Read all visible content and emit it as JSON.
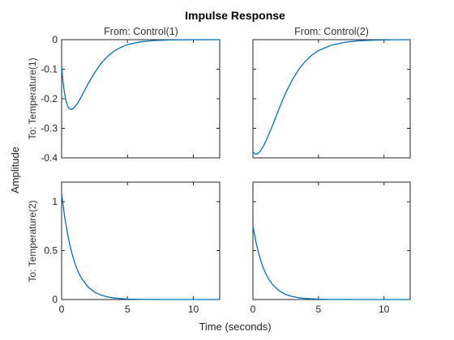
{
  "chart_data": {
    "type": "line",
    "title": "Impulse Response",
    "xlabel": "Time (seconds)",
    "ylabel": "Amplitude",
    "column_labels": [
      "From: Control(1)",
      "From: Control(2)"
    ],
    "row_labels": [
      "To: Temperature(1)",
      "To: Temperature(2)"
    ],
    "xlim": [
      0,
      12
    ],
    "xticks": [
      0,
      5,
      10
    ],
    "xtick_labels": [
      "0",
      "5",
      "10"
    ],
    "rows": [
      {
        "ylim": [
          -0.4,
          0
        ],
        "yticks": [
          0,
          -0.1,
          -0.2,
          -0.3,
          -0.4
        ],
        "ytick_labels": [
          "0",
          "-0.1",
          "-0.2",
          "-0.3",
          "-0.4"
        ]
      },
      {
        "ylim": [
          0,
          1.2
        ],
        "yticks": [
          1,
          0.5,
          0
        ],
        "ytick_labels": [
          "1",
          "0.5",
          "0"
        ]
      }
    ],
    "line_color": "#0072BD",
    "series": [
      {
        "row": 0,
        "col": 0,
        "x": [
          0,
          0.1,
          0.2,
          0.3,
          0.4,
          0.5,
          0.6,
          0.7,
          0.8,
          0.9,
          1.0,
          1.2,
          1.5,
          1.8,
          2.0,
          2.5,
          3.0,
          3.5,
          4.0,
          4.5,
          5.0,
          6.0,
          7.0,
          8.0,
          9.0,
          10.0,
          11.0,
          12.0
        ],
        "y": [
          -0.09,
          -0.14,
          -0.175,
          -0.2,
          -0.217,
          -0.228,
          -0.234,
          -0.236,
          -0.235,
          -0.232,
          -0.228,
          -0.216,
          -0.193,
          -0.167,
          -0.15,
          -0.112,
          -0.08,
          -0.056,
          -0.038,
          -0.026,
          -0.017,
          -0.007,
          -0.003,
          -0.0012,
          -0.0005,
          -0.0002,
          -0.0001,
          0
        ]
      },
      {
        "row": 0,
        "col": 1,
        "x": [
          0,
          0.2,
          0.4,
          0.6,
          0.8,
          1.0,
          1.5,
          2.0,
          2.5,
          3.0,
          3.5,
          4.0,
          4.5,
          5.0,
          6.0,
          7.0,
          8.0,
          9.0,
          10.0,
          11.0,
          12.0
        ],
        "y": [
          -0.38,
          -0.388,
          -0.385,
          -0.375,
          -0.36,
          -0.342,
          -0.29,
          -0.233,
          -0.18,
          -0.136,
          -0.1,
          -0.073,
          -0.052,
          -0.037,
          -0.018,
          -0.009,
          -0.004,
          -0.002,
          -0.001,
          -0.0004,
          0
        ]
      },
      {
        "row": 1,
        "col": 0,
        "x": [
          0,
          0.25,
          0.5,
          0.75,
          1.0,
          1.25,
          1.5,
          2.0,
          2.5,
          3.0,
          3.5,
          4.0,
          5.0,
          6.0,
          7.0,
          8.0,
          10.0,
          12.0
        ],
        "y": [
          1.08,
          0.828,
          0.635,
          0.487,
          0.373,
          0.286,
          0.219,
          0.129,
          0.076,
          0.045,
          0.026,
          0.015,
          0.005,
          0.002,
          0.0007,
          0.0002,
          0,
          0
        ]
      },
      {
        "row": 1,
        "col": 1,
        "x": [
          0,
          0.25,
          0.5,
          0.75,
          1.0,
          1.25,
          1.5,
          2.0,
          2.5,
          3.0,
          3.5,
          4.0,
          5.0,
          6.0,
          7.0,
          8.0,
          10.0,
          12.0
        ],
        "y": [
          0.75,
          0.574,
          0.44,
          0.337,
          0.258,
          0.198,
          0.152,
          0.089,
          0.052,
          0.031,
          0.018,
          0.011,
          0.004,
          0.0012,
          0.0004,
          0.0001,
          0,
          0
        ]
      }
    ]
  }
}
